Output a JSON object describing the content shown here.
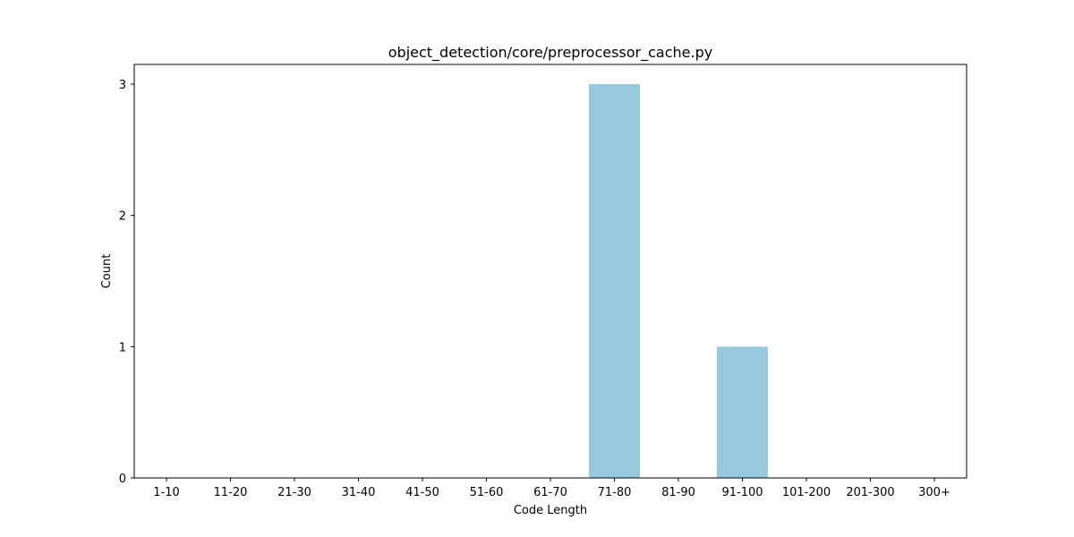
{
  "chart_data": {
    "type": "bar",
    "title": "object_detection/core/preprocessor_cache.py",
    "xlabel": "Code Length",
    "ylabel": "Count",
    "categories": [
      "1-10",
      "11-20",
      "21-30",
      "31-40",
      "41-50",
      "51-60",
      "61-70",
      "71-80",
      "81-90",
      "91-100",
      "101-200",
      "201-300",
      "300+"
    ],
    "values": [
      0,
      0,
      0,
      0,
      0,
      0,
      0,
      3,
      0,
      1,
      0,
      0,
      0
    ],
    "yticks": [
      0,
      1,
      2,
      3
    ],
    "ylim": [
      0,
      3.15
    ],
    "bar_color": "#96c9de",
    "grid": false,
    "legend": "none"
  }
}
